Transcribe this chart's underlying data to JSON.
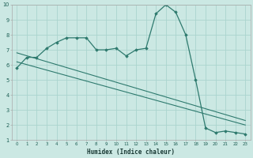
{
  "xlabel": "Humidex (Indice chaleur)",
  "background_color": "#cbe8e3",
  "grid_color": "#aad4ce",
  "line_color": "#2e7a6e",
  "x_values": [
    0,
    1,
    2,
    3,
    4,
    5,
    6,
    7,
    8,
    9,
    10,
    11,
    12,
    13,
    14,
    15,
    16,
    17,
    18,
    19,
    20,
    21,
    22,
    23
  ],
  "main_curve": [
    5.8,
    6.5,
    6.5,
    7.1,
    7.5,
    7.8,
    7.8,
    7.8,
    7.0,
    7.0,
    7.1,
    6.6,
    7.0,
    7.1,
    9.4,
    10.0,
    9.5,
    8.0,
    5.0,
    1.8,
    1.5,
    1.6,
    1.5,
    1.4
  ],
  "line2_x": [
    0,
    23
  ],
  "line2_y": [
    6.8,
    2.3
  ],
  "line3_x": [
    0,
    23
  ],
  "line3_y": [
    6.2,
    2.0
  ],
  "ylim": [
    1,
    10
  ],
  "xlim": [
    -0.5,
    23.5
  ],
  "yticks": [
    1,
    2,
    3,
    4,
    5,
    6,
    7,
    8,
    9,
    10
  ],
  "xticks": [
    0,
    1,
    2,
    3,
    4,
    5,
    6,
    7,
    8,
    9,
    10,
    11,
    12,
    13,
    14,
    15,
    16,
    17,
    18,
    19,
    20,
    21,
    22,
    23
  ]
}
